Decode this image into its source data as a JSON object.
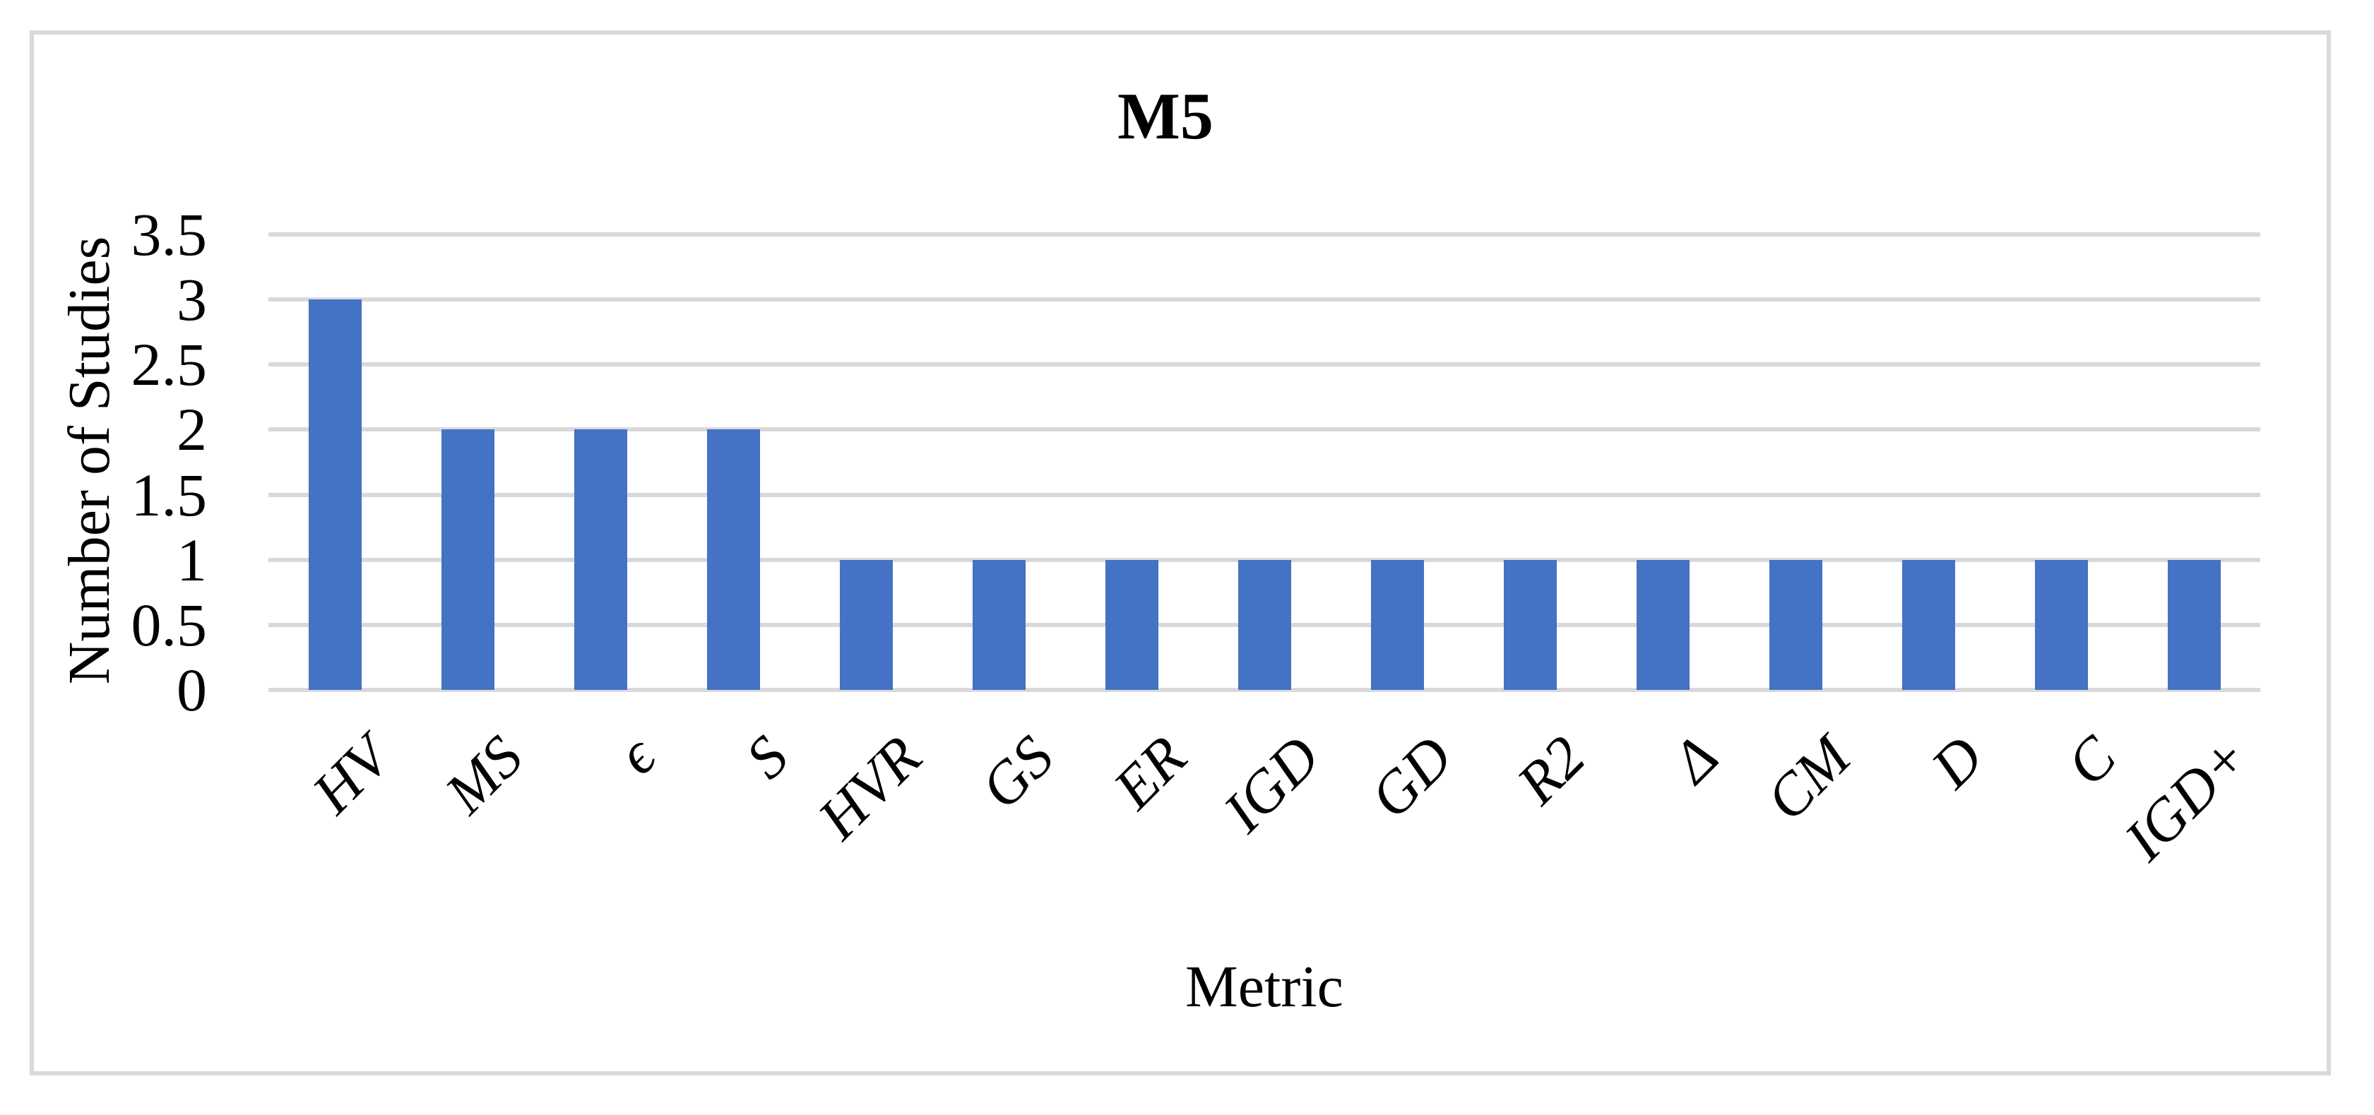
{
  "chart_data": {
    "type": "bar",
    "title": "M5",
    "xlabel": "Metric",
    "ylabel": "Number of Studies",
    "categories": [
      "HV",
      "MS",
      "ϵ",
      "S",
      "HVR",
      "GS",
      "ER",
      "IGD",
      "GD",
      "R2",
      "Δ",
      "CM",
      "D",
      "C",
      "IGD+"
    ],
    "values": [
      3,
      2,
      2,
      2,
      1,
      1,
      1,
      1,
      1,
      1,
      1,
      1,
      1,
      1,
      1
    ],
    "ylim": [
      0,
      3.5
    ],
    "yticks": [
      0,
      0.5,
      1,
      1.5,
      2,
      2.5,
      3,
      3.5
    ],
    "ytick_labels": [
      "0",
      "0.5",
      "1",
      "1.5",
      "2",
      "2.5",
      "3",
      "3.5"
    ],
    "grid": true,
    "legend": false,
    "bar_color": "#4472C4",
    "gridline_color": "#D9D9D9",
    "border_color": "#D9D9D9",
    "text_color": "#000000"
  }
}
